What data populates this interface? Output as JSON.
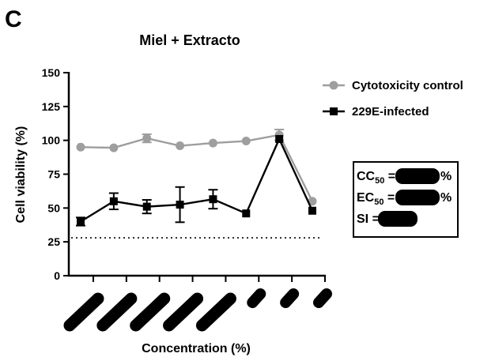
{
  "panel_label": "C",
  "chart_data": {
    "type": "line",
    "title": "Miel + Extracto",
    "xlabel": "Concentration (%)",
    "ylabel": "Cell viability (%)",
    "ylim": [
      0,
      150
    ],
    "yticks": [
      0,
      25,
      50,
      75,
      100,
      125,
      150
    ],
    "x": [
      1,
      2,
      3,
      4,
      5,
      6,
      7,
      8
    ],
    "categories_redacted": true,
    "reference_line": {
      "y": 28,
      "style": "dotted"
    },
    "legend_position": "top-right",
    "series": [
      {
        "name": "Cytotoxicity control",
        "color": "#9e9e9e",
        "marker": "circle",
        "values": [
          95,
          94.5,
          101.5,
          96,
          98,
          99.5,
          104,
          55
        ],
        "errors": [
          0,
          0,
          3,
          0,
          0,
          0,
          4,
          0
        ]
      },
      {
        "name": "229E-infected",
        "color": "#000000",
        "marker": "square",
        "values": [
          40,
          55,
          51,
          52.5,
          56.5,
          46,
          101,
          48
        ],
        "errors": [
          3,
          6,
          5,
          13,
          7,
          0,
          0,
          0
        ]
      }
    ],
    "stats_box": {
      "lines": [
        {
          "main": "CC",
          "sub": "50",
          "suffix": "= ",
          "unit": "%"
        },
        {
          "main": "EC",
          "sub": "50",
          "suffix": "= ",
          "unit": "%"
        },
        {
          "main": "SI",
          "sub": "",
          "suffix": " = ",
          "unit": ""
        }
      ]
    }
  }
}
